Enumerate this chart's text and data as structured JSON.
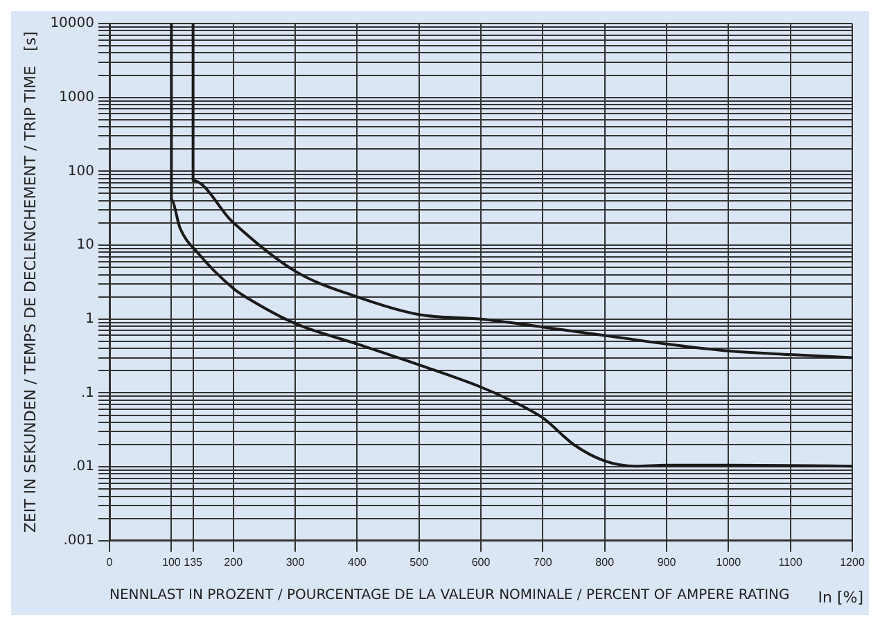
{
  "chart_data": {
    "type": "line",
    "xlabel": "NENNLAST IN PROZENT / POURCENTAGE DE LA VALEUR NOMINALE / PERCENT OF AMPERE RATING",
    "ylabel": "ZEIT IN SEKUNDEN / TEMPS DE DECLENCHEMENT / TRIP TIME   [s]",
    "annotations": [
      "In [%]"
    ],
    "log": "y",
    "grid": true,
    "legend": false,
    "marker": "none",
    "line_style": "solid",
    "xlim": [
      0,
      1200
    ],
    "ylim": [
      0.001,
      10000
    ],
    "xticks": [
      0,
      100,
      135,
      200,
      300,
      400,
      500,
      600,
      700,
      800,
      900,
      1000,
      1100,
      1200
    ],
    "yticks": [
      {
        "value": 0.001,
        "label": ".001"
      },
      {
        "value": 0.002,
        "label": null
      },
      {
        "value": 0.003,
        "label": null
      },
      {
        "value": 0.004,
        "label": null
      },
      {
        "value": 0.005,
        "label": null
      },
      {
        "value": 0.006,
        "label": null
      },
      {
        "value": 0.007,
        "label": null
      },
      {
        "value": 0.008,
        "label": null
      },
      {
        "value": 0.009,
        "label": null
      },
      {
        "value": 0.01,
        "label": ".01"
      },
      {
        "value": 0.02,
        "label": null
      },
      {
        "value": 0.03,
        "label": null
      },
      {
        "value": 0.04,
        "label": null
      },
      {
        "value": 0.05,
        "label": null
      },
      {
        "value": 0.06,
        "label": null
      },
      {
        "value": 0.07,
        "label": null
      },
      {
        "value": 0.08,
        "label": null
      },
      {
        "value": 0.09,
        "label": null
      },
      {
        "value": 0.1,
        "label": ".1"
      },
      {
        "value": 0.2,
        "label": null
      },
      {
        "value": 0.3,
        "label": null
      },
      {
        "value": 0.4,
        "label": null
      },
      {
        "value": 0.5,
        "label": null
      },
      {
        "value": 0.6,
        "label": null
      },
      {
        "value": 0.7,
        "label": null
      },
      {
        "value": 0.8,
        "label": null
      },
      {
        "value": 0.9,
        "label": null
      },
      {
        "value": 1,
        "label": "1"
      },
      {
        "value": 2,
        "label": null
      },
      {
        "value": 3,
        "label": null
      },
      {
        "value": 4,
        "label": null
      },
      {
        "value": 5,
        "label": null
      },
      {
        "value": 6,
        "label": null
      },
      {
        "value": 7,
        "label": null
      },
      {
        "value": 8,
        "label": null
      },
      {
        "value": 9,
        "label": null
      },
      {
        "value": 10,
        "label": "10"
      },
      {
        "value": 20,
        "label": null
      },
      {
        "value": 30,
        "label": null
      },
      {
        "value": 40,
        "label": null
      },
      {
        "value": 50,
        "label": null
      },
      {
        "value": 60,
        "label": null
      },
      {
        "value": 70,
        "label": null
      },
      {
        "value": 80,
        "label": null
      },
      {
        "value": 90,
        "label": null
      },
      {
        "value": 100,
        "label": "100"
      },
      {
        "value": 200,
        "label": null
      },
      {
        "value": 300,
        "label": null
      },
      {
        "value": 400,
        "label": null
      },
      {
        "value": 500,
        "label": null
      },
      {
        "value": 600,
        "label": null
      },
      {
        "value": 700,
        "label": null
      },
      {
        "value": 800,
        "label": null
      },
      {
        "value": 900,
        "label": null
      },
      {
        "value": 1000,
        "label": "1000"
      },
      {
        "value": 2000,
        "label": null
      },
      {
        "value": 3000,
        "label": null
      },
      {
        "value": 4000,
        "label": null
      },
      {
        "value": 5000,
        "label": null
      },
      {
        "value": 6000,
        "label": null
      },
      {
        "value": 7000,
        "label": null
      },
      {
        "value": 8000,
        "label": null
      },
      {
        "value": 9000,
        "label": null
      },
      {
        "value": 10000,
        "label": "10000"
      }
    ],
    "series": [
      {
        "color": "#1a1a1a",
        "x": [
          135,
          135,
          198,
          301,
          400,
          500,
          600,
          700,
          800,
          900,
          1000,
          1100,
          1200
        ],
        "values": [
          10000,
          75,
          21,
          4.4,
          2.0,
          1.15,
          1.0,
          0.78,
          0.6,
          0.46,
          0.37,
          0.33,
          0.3
        ]
      },
      {
        "color": "#1a1a1a",
        "x": [
          100,
          100,
          114,
          143,
          200,
          224,
          300,
          400,
          500,
          600,
          650,
          700,
          750,
          800,
          850,
          900,
          1000,
          1100,
          1200
        ],
        "values": [
          10000,
          41,
          17,
          7.8,
          2.6,
          1.9,
          0.87,
          0.46,
          0.24,
          0.12,
          0.078,
          0.046,
          0.02,
          0.012,
          0.0102,
          0.0105,
          0.0105,
          0.0104,
          0.0102
        ]
      }
    ]
  }
}
